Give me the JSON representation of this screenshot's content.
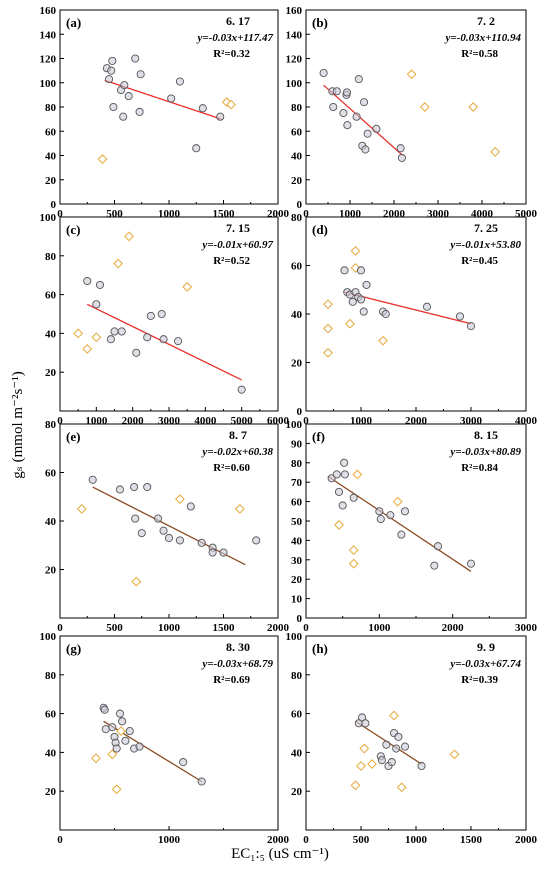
{
  "figure": {
    "ylabel": "gₛ (mmol m⁻²s⁻¹)",
    "xlabel": "EC₁:₅ (uS cm⁻¹)"
  },
  "colors": {
    "circle_stroke": "#555555",
    "circle_fill": "#c9c9d9",
    "diamond_stroke": "#e8b04a",
    "trend_red": "#e8302a",
    "trend_brown": "#8b4a20"
  },
  "chart_data": [
    {
      "type": "scatter",
      "panel": "(a)",
      "date": "6. 17",
      "equation": "y=-0.03x+117.47",
      "r2": "R²=0.32",
      "xlim": [
        0,
        2000
      ],
      "ylim": [
        0,
        160
      ],
      "xticks": [
        0,
        500,
        1000,
        1500,
        2000
      ],
      "yticks": [
        0,
        20,
        40,
        60,
        80,
        100,
        120,
        140,
        160
      ],
      "trend": {
        "x": [
          410,
          1480
        ],
        "y": [
          102,
          70
        ],
        "color": "red"
      },
      "circles": [
        [
          430,
          112
        ],
        [
          480,
          118
        ],
        [
          470,
          110
        ],
        [
          450,
          103
        ],
        [
          490,
          80
        ],
        [
          560,
          94
        ],
        [
          580,
          72
        ],
        [
          590,
          98
        ],
        [
          630,
          89
        ],
        [
          690,
          120
        ],
        [
          740,
          107
        ],
        [
          730,
          76
        ],
        [
          1020,
          87
        ],
        [
          1100,
          101
        ],
        [
          1250,
          46
        ],
        [
          1310,
          79
        ],
        [
          1470,
          72
        ]
      ],
      "diamonds": [
        [
          390,
          37
        ],
        [
          1530,
          84
        ],
        [
          1570,
          82
        ]
      ]
    },
    {
      "type": "scatter",
      "panel": "(b)",
      "date": "7. 2",
      "equation": "y=-0.03x+110.94",
      "r2": "R²=0.58",
      "xlim": [
        0,
        5000
      ],
      "ylim": [
        0,
        160
      ],
      "xticks": [
        0,
        1000,
        2000,
        3000,
        4000,
        5000
      ],
      "yticks": [
        0,
        20,
        40,
        60,
        80,
        100,
        120,
        140,
        160
      ],
      "trend": {
        "x": [
          400,
          2200
        ],
        "y": [
          98,
          40
        ],
        "color": "red"
      },
      "circles": [
        [
          400,
          108
        ],
        [
          600,
          93
        ],
        [
          620,
          80
        ],
        [
          700,
          93
        ],
        [
          850,
          75
        ],
        [
          920,
          90
        ],
        [
          930,
          92
        ],
        [
          940,
          65
        ],
        [
          1150,
          72
        ],
        [
          1200,
          103
        ],
        [
          1280,
          48
        ],
        [
          1320,
          84
        ],
        [
          1350,
          45
        ],
        [
          1400,
          58
        ],
        [
          1600,
          62
        ],
        [
          2150,
          46
        ],
        [
          2180,
          38
        ]
      ],
      "diamonds": [
        [
          2400,
          107
        ],
        [
          2700,
          80
        ],
        [
          3800,
          80
        ],
        [
          4300,
          43
        ]
      ]
    },
    {
      "type": "scatter",
      "panel": "(c)",
      "date": "7. 15",
      "equation": "y=-0.01x+60.97",
      "r2": "R²=0.52",
      "xlim": [
        0,
        6000
      ],
      "ylim": [
        0,
        100
      ],
      "xticks": [
        0,
        1000,
        2000,
        3000,
        4000,
        5000,
        6000
      ],
      "yticks": [
        20,
        40,
        60,
        80,
        100
      ],
      "trend": {
        "x": [
          750,
          5000
        ],
        "y": [
          55,
          16
        ],
        "color": "red"
      },
      "circles": [
        [
          750,
          67
        ],
        [
          1000,
          55
        ],
        [
          1100,
          65
        ],
        [
          1400,
          37
        ],
        [
          1500,
          41
        ],
        [
          1700,
          41
        ],
        [
          2100,
          30
        ],
        [
          2400,
          38
        ],
        [
          2500,
          49
        ],
        [
          2800,
          50
        ],
        [
          2850,
          37
        ],
        [
          3250,
          36
        ],
        [
          5000,
          11
        ]
      ],
      "diamonds": [
        [
          500,
          40
        ],
        [
          750,
          32
        ],
        [
          1000,
          38
        ],
        [
          1600,
          76
        ],
        [
          1900,
          90
        ],
        [
          3500,
          64
        ]
      ]
    },
    {
      "type": "scatter",
      "panel": "(d)",
      "date": "7. 25",
      "equation": "y=-0.01x+53.80",
      "r2": "R²=0.45",
      "xlim": [
        0,
        4000
      ],
      "ylim": [
        0,
        80
      ],
      "xticks": [
        0,
        1000,
        2000,
        3000,
        4000
      ],
      "yticks": [
        0,
        20,
        40,
        60,
        80
      ],
      "trend": {
        "x": [
          700,
          3000
        ],
        "y": [
          49,
          36
        ],
        "color": "red"
      },
      "circles": [
        [
          700,
          58
        ],
        [
          750,
          49
        ],
        [
          800,
          48
        ],
        [
          850,
          45
        ],
        [
          900,
          49
        ],
        [
          950,
          47
        ],
        [
          1000,
          58
        ],
        [
          1000,
          46
        ],
        [
          1050,
          41
        ],
        [
          1100,
          52
        ],
        [
          1400,
          41
        ],
        [
          1450,
          40
        ],
        [
          2200,
          43
        ],
        [
          2800,
          39
        ],
        [
          3000,
          35
        ]
      ],
      "diamonds": [
        [
          400,
          44
        ],
        [
          400,
          34
        ],
        [
          400,
          24
        ],
        [
          800,
          36
        ],
        [
          900,
          66
        ],
        [
          900,
          59
        ],
        [
          1400,
          29
        ]
      ]
    },
    {
      "type": "scatter",
      "panel": "(e)",
      "date": "8. 7",
      "equation": "y=-0.02x+60.38",
      "r2": "R²=0.60",
      "xlim": [
        0,
        2000
      ],
      "ylim": [
        0,
        80
      ],
      "xticks": [
        0,
        500,
        1000,
        1500,
        2000
      ],
      "yticks": [
        20,
        40,
        60,
        80
      ],
      "trend": {
        "x": [
          300,
          1700
        ],
        "y": [
          54,
          22
        ],
        "color": "brown"
      },
      "circles": [
        [
          300,
          57
        ],
        [
          550,
          53
        ],
        [
          680,
          54
        ],
        [
          690,
          41
        ],
        [
          750,
          35
        ],
        [
          800,
          54
        ],
        [
          900,
          41
        ],
        [
          950,
          36
        ],
        [
          1000,
          33
        ],
        [
          1100,
          32
        ],
        [
          1200,
          46
        ],
        [
          1300,
          31
        ],
        [
          1400,
          29
        ],
        [
          1400,
          27
        ],
        [
          1500,
          27
        ],
        [
          1800,
          32
        ]
      ],
      "diamonds": [
        [
          200,
          45
        ],
        [
          700,
          15
        ],
        [
          1100,
          49
        ],
        [
          1650,
          45
        ]
      ]
    },
    {
      "type": "scatter",
      "panel": "(f)",
      "date": "8. 15",
      "equation": "y=-0.03x+80.89",
      "r2": "R²=0.84",
      "xlim": [
        0,
        3000
      ],
      "ylim": [
        0,
        100
      ],
      "xticks": [
        0,
        1000,
        2000,
        3000
      ],
      "yticks": [
        0,
        10,
        20,
        30,
        40,
        50,
        60,
        70,
        80,
        90,
        100
      ],
      "trend": {
        "x": [
          300,
          2250
        ],
        "y": [
          73,
          24
        ],
        "color": "brown"
      },
      "circles": [
        [
          350,
          72
        ],
        [
          420,
          74
        ],
        [
          450,
          65
        ],
        [
          500,
          58
        ],
        [
          520,
          80
        ],
        [
          530,
          74
        ],
        [
          650,
          62
        ],
        [
          1000,
          55
        ],
        [
          1020,
          51
        ],
        [
          1150,
          53
        ],
        [
          1300,
          43
        ],
        [
          1350,
          55
        ],
        [
          1750,
          27
        ],
        [
          1800,
          37
        ],
        [
          2250,
          28
        ]
      ],
      "diamonds": [
        [
          450,
          48
        ],
        [
          650,
          35
        ],
        [
          650,
          28
        ],
        [
          700,
          74
        ],
        [
          1250,
          60
        ]
      ]
    },
    {
      "type": "scatter",
      "panel": "(g)",
      "date": "8. 30",
      "equation": "y=-0.03x+68.79",
      "r2": "R²=0.69",
      "xlim": [
        0,
        2000
      ],
      "ylim": [
        0,
        100
      ],
      "xticks": [
        0,
        1000,
        2000
      ],
      "yticks": [
        20,
        40,
        60,
        80,
        100
      ],
      "trend": {
        "x": [
          400,
          1300
        ],
        "y": [
          56,
          25
        ],
        "color": "brown"
      },
      "circles": [
        [
          400,
          63
        ],
        [
          410,
          62
        ],
        [
          420,
          52
        ],
        [
          480,
          53
        ],
        [
          500,
          48
        ],
        [
          510,
          45
        ],
        [
          520,
          42
        ],
        [
          550,
          60
        ],
        [
          570,
          56
        ],
        [
          600,
          46
        ],
        [
          640,
          51
        ],
        [
          680,
          42
        ],
        [
          730,
          43
        ],
        [
          1130,
          35
        ],
        [
          1300,
          25
        ]
      ],
      "diamonds": [
        [
          330,
          37
        ],
        [
          480,
          39
        ],
        [
          520,
          21
        ],
        [
          560,
          51
        ]
      ]
    },
    {
      "type": "scatter",
      "panel": "(h)",
      "date": "9. 9",
      "equation": "y=-0.03x+67.74",
      "r2": "R²=0.39",
      "xlim": [
        0,
        2000
      ],
      "ylim": [
        0,
        100
      ],
      "xticks": [
        0,
        500,
        1000,
        1500,
        2000
      ],
      "yticks": [
        20,
        40,
        60,
        80,
        100
      ],
      "trend": {
        "x": [
          450,
          1050
        ],
        "y": [
          56,
          34
        ],
        "color": "brown"
      },
      "circles": [
        [
          480,
          55
        ],
        [
          510,
          58
        ],
        [
          540,
          55
        ],
        [
          680,
          38
        ],
        [
          690,
          36
        ],
        [
          730,
          44
        ],
        [
          750,
          33
        ],
        [
          780,
          35
        ],
        [
          800,
          50
        ],
        [
          820,
          42
        ],
        [
          840,
          48
        ],
        [
          900,
          43
        ],
        [
          1050,
          33
        ]
      ],
      "diamonds": [
        [
          450,
          23
        ],
        [
          500,
          33
        ],
        [
          530,
          42
        ],
        [
          600,
          34
        ],
        [
          800,
          59
        ],
        [
          870,
          22
        ],
        [
          1350,
          39
        ]
      ]
    }
  ]
}
